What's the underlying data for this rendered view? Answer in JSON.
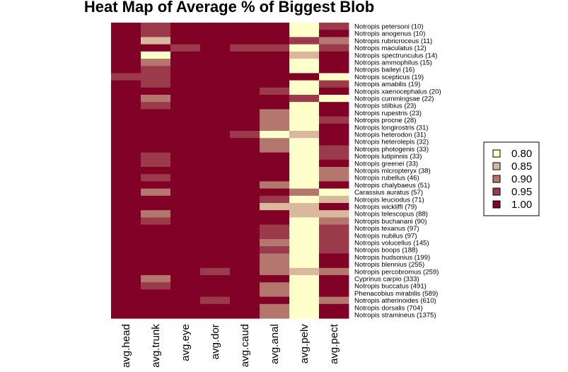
{
  "chart_data": {
    "type": "heatmap",
    "title": "Heat Map of Average % of Biggest Blob",
    "columns": [
      "avg.head",
      "avg.trunk",
      "avg.eye",
      "avg.dor",
      "avg.caud",
      "avg.anal",
      "avg.pelv",
      "avg.pect"
    ],
    "rows": [
      "Notropis petersoni (10)",
      "Notropis anogenus (10)",
      "Notropis rubricroceus (11)",
      "Notropis maculatus (12)",
      "Notropis spectrunculus (14)",
      "Notropis ammophilus (15)",
      "Notropis baileyi (16)",
      "Notropis scepticus (19)",
      "Notropis amabilis (19)",
      "Notropis xaenocephalus (20)",
      "Notropis cummingsae (22)",
      "Notropis stilbius (23)",
      "Notropis rupestris (23)",
      "Notropis procne (28)",
      "Notropis longirostris (31)",
      "Notropis heterodon (31)",
      "Notropis heterolepis (32)",
      "Notropis photogenis (33)",
      "Notropis lutipinnis (33)",
      "Notropis greenei (33)",
      "Notropis micropteryx (38)",
      "Notropis rubellus (46)",
      "Notropis chalybaeus (51)",
      "Carassius auratus (57)",
      "Notropis leuciodus (71)",
      "Notropis wickliffi (79)",
      "Notropis telescopus (88)",
      "Notropis buchanani (90)",
      "Notropis texanus (97)",
      "Notropis nubilus (97)",
      "Notropis volucellus (145)",
      "Notropis boops (188)",
      "Notropis hudsonius (199)",
      "Notropis blennius (255)",
      "Notropis percobromus (259)",
      "Cyprinus carpio (333)",
      "Notropis buccatus (491)",
      "Phenacobius mirabilis (589)",
      "Notropis atherinoides (610)",
      "Notropis dorsalis (704)",
      "Notropis stramineus (1375)"
    ],
    "values": [
      [
        1.0,
        0.95,
        1.0,
        1.0,
        1.0,
        1.0,
        0.8,
        0.95
      ],
      [
        1.0,
        0.95,
        1.0,
        1.0,
        1.0,
        1.0,
        0.8,
        1.0
      ],
      [
        1.0,
        0.85,
        1.0,
        1.0,
        1.0,
        1.0,
        0.95,
        0.9
      ],
      [
        1.0,
        1.0,
        0.95,
        1.0,
        0.95,
        0.95,
        0.8,
        0.95
      ],
      [
        1.0,
        0.8,
        1.0,
        1.0,
        1.0,
        1.0,
        0.85,
        1.0
      ],
      [
        1.0,
        0.9,
        1.0,
        1.0,
        1.0,
        1.0,
        0.8,
        1.0
      ],
      [
        1.0,
        0.95,
        1.0,
        1.0,
        1.0,
        1.0,
        0.8,
        1.0
      ],
      [
        0.95,
        0.95,
        1.0,
        1.0,
        1.0,
        1.0,
        1.0,
        0.8
      ],
      [
        1.0,
        0.95,
        1.0,
        1.0,
        1.0,
        1.0,
        0.8,
        0.95
      ],
      [
        1.0,
        1.0,
        1.0,
        1.0,
        1.0,
        0.95,
        0.8,
        1.0
      ],
      [
        1.0,
        0.9,
        1.0,
        1.0,
        1.0,
        1.0,
        0.95,
        0.8
      ],
      [
        1.0,
        0.95,
        1.0,
        1.0,
        1.0,
        1.0,
        0.8,
        1.0
      ],
      [
        1.0,
        1.0,
        1.0,
        1.0,
        1.0,
        0.9,
        0.8,
        1.0
      ],
      [
        1.0,
        1.0,
        1.0,
        1.0,
        1.0,
        0.9,
        0.8,
        0.95
      ],
      [
        1.0,
        1.0,
        1.0,
        1.0,
        1.0,
        0.9,
        0.8,
        1.0
      ],
      [
        1.0,
        1.0,
        1.0,
        1.0,
        0.95,
        0.8,
        0.85,
        1.0
      ],
      [
        1.0,
        1.0,
        1.0,
        1.0,
        1.0,
        0.9,
        0.8,
        1.0
      ],
      [
        1.0,
        1.0,
        1.0,
        1.0,
        1.0,
        0.9,
        0.8,
        0.95
      ],
      [
        1.0,
        0.95,
        1.0,
        1.0,
        1.0,
        1.0,
        0.8,
        0.95
      ],
      [
        1.0,
        0.95,
        1.0,
        1.0,
        1.0,
        1.0,
        0.8,
        1.0
      ],
      [
        1.0,
        1.0,
        1.0,
        1.0,
        1.0,
        1.0,
        0.8,
        0.9
      ],
      [
        1.0,
        0.95,
        1.0,
        1.0,
        1.0,
        1.0,
        0.8,
        0.9
      ],
      [
        1.0,
        1.0,
        1.0,
        1.0,
        1.0,
        0.9,
        0.8,
        1.0
      ],
      [
        1.0,
        0.9,
        1.0,
        1.0,
        1.0,
        1.0,
        0.9,
        0.8
      ],
      [
        1.0,
        1.0,
        1.0,
        1.0,
        1.0,
        0.95,
        0.8,
        0.85
      ],
      [
        1.0,
        1.0,
        1.0,
        1.0,
        1.0,
        0.85,
        0.85,
        1.0
      ],
      [
        1.0,
        0.9,
        1.0,
        1.0,
        1.0,
        1.0,
        0.85,
        0.85
      ],
      [
        1.0,
        0.95,
        1.0,
        1.0,
        1.0,
        1.0,
        0.8,
        0.9
      ],
      [
        1.0,
        1.0,
        1.0,
        1.0,
        1.0,
        0.95,
        0.8,
        0.95
      ],
      [
        1.0,
        1.0,
        1.0,
        1.0,
        1.0,
        0.95,
        0.8,
        0.95
      ],
      [
        1.0,
        1.0,
        1.0,
        1.0,
        1.0,
        0.9,
        0.8,
        0.95
      ],
      [
        1.0,
        1.0,
        1.0,
        1.0,
        1.0,
        0.95,
        0.8,
        0.95
      ],
      [
        1.0,
        1.0,
        1.0,
        1.0,
        1.0,
        0.9,
        0.8,
        1.0
      ],
      [
        1.0,
        1.0,
        1.0,
        1.0,
        1.0,
        0.9,
        0.8,
        1.0
      ],
      [
        1.0,
        1.0,
        1.0,
        0.95,
        1.0,
        0.9,
        0.85,
        0.9
      ],
      [
        1.0,
        0.9,
        1.0,
        1.0,
        1.0,
        1.0,
        0.8,
        1.0
      ],
      [
        1.0,
        0.95,
        1.0,
        1.0,
        1.0,
        0.9,
        0.8,
        1.0
      ],
      [
        1.0,
        1.0,
        1.0,
        1.0,
        1.0,
        0.9,
        0.8,
        1.0
      ],
      [
        1.0,
        1.0,
        1.0,
        0.95,
        1.0,
        1.0,
        0.8,
        0.9
      ],
      [
        1.0,
        1.0,
        1.0,
        1.0,
        1.0,
        0.9,
        0.8,
        1.0
      ],
      [
        1.0,
        1.0,
        1.0,
        1.0,
        1.0,
        0.9,
        0.8,
        1.0
      ]
    ],
    "legend": {
      "position": "right",
      "entries": [
        {
          "label": "0.80",
          "value": 0.8,
          "color": "#FFFFCC"
        },
        {
          "label": "0.85",
          "value": 0.85,
          "color": "#D9B89E"
        },
        {
          "label": "0.90",
          "value": 0.9,
          "color": "#B3776E"
        },
        {
          "label": "0.95",
          "value": 0.95,
          "color": "#9A3A4A"
        },
        {
          "label": "1.00",
          "value": 1.0,
          "color": "#800026"
        }
      ]
    }
  }
}
